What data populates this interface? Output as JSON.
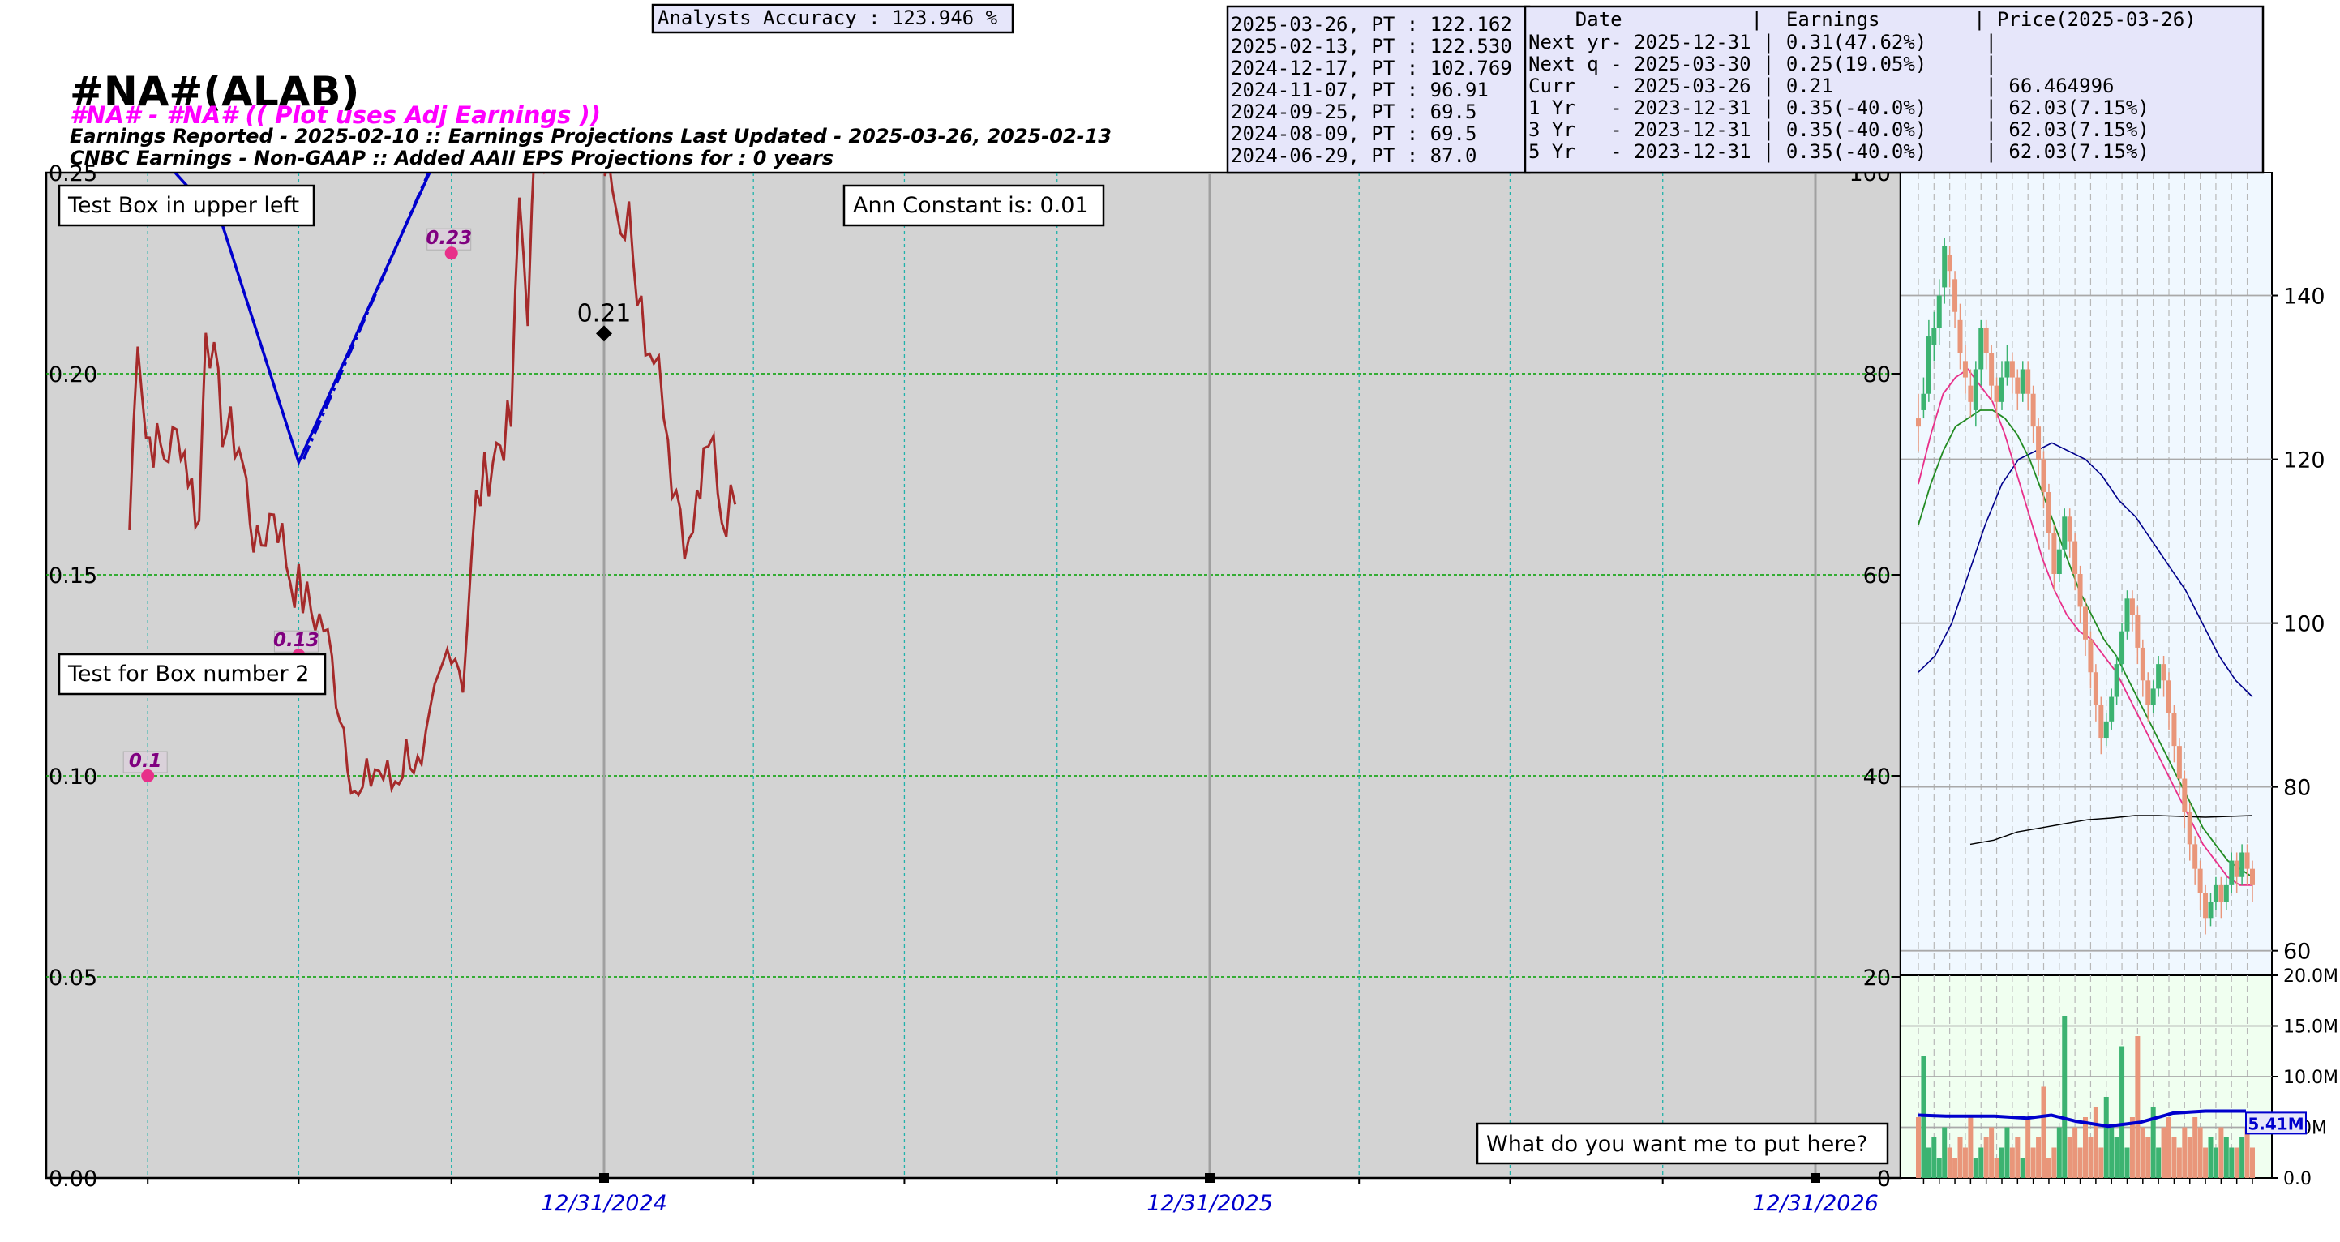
{
  "header": {
    "title": "#NA#(ALAB)",
    "subtitle": "#NA# - #NA# (( Plot uses Adj Earnings ))",
    "line1": "Earnings Reported - 2025-02-10 :: Earnings Projections Last Updated - 2025-03-26, 2025-02-13",
    "line2": "CNBC Earnings - Non-GAAP :: Added AAII EPS Projections for : 0 years",
    "accuracy": "Analysts Accuracy : 123.946 %"
  },
  "price_targets": [
    "2025-03-26, PT : 122.162",
    "2025-02-13, PT : 122.530",
    "2024-12-17, PT : 102.769",
    "2024-11-07, PT : 96.91",
    "2024-09-25, PT : 69.5",
    "2024-08-09, PT : 69.5",
    "2024-06-29, PT : 87.0"
  ],
  "earnings_table": {
    "header": "    Date           |  Earnings        | Price(2025-03-26)",
    "rows": [
      "Next yr- 2025-12-31 | 0.31(47.62%)     |",
      "Next q - 2025-03-30 | 0.25(19.05%)     |",
      "Curr   - 2025-03-26 | 0.21             | 66.464996",
      "1 Yr   - 2023-12-31 | 0.35(-40.0%)     | 62.03(7.15%)",
      "3 Yr   - 2023-12-31 | 0.35(-40.0%)     | 62.03(7.15%)",
      "5 Yr   - 2023-12-31 | 0.35(-40.0%)     | 62.03(7.15%)"
    ]
  },
  "boxes": {
    "upper_left": "Test Box in upper left",
    "box2": "Test for Box number 2",
    "constant": "Ann Constant is: 0.01",
    "bottom_right": "What do you want me to put here?"
  },
  "colors": {
    "plot_bg": "#d3d3d3",
    "price_line": "#a52a2a",
    "earnings_line": "#0000cd",
    "marker": "#e8308a",
    "label_purple": "#800080",
    "subtitle": "#ff00ff",
    "date_label": "#0000cd",
    "grid_green": "#00a000",
    "grid_cyan": "#20b2aa",
    "table_bg": "#e6e6fa",
    "candle_up": "#3cb371",
    "candle_down": "#e9967a",
    "right_bg": "#f0f8ff",
    "volume_bg": "#f0fff0"
  },
  "chart_data": [
    {
      "type": "line",
      "y_left_ticks": [
        "0.00",
        "0.05",
        "0.10",
        "0.15",
        "0.20",
        "0.25"
      ],
      "y_right_ticks": [
        "0",
        "20",
        "40",
        "60",
        "80",
        "100"
      ],
      "ylim_left": [
        0,
        0.25
      ],
      "ylim_right": [
        0,
        100
      ],
      "x_ticks": [
        "12/31/2024",
        "12/31/2025",
        "12/31/2026"
      ],
      "earnings_points": [
        {
          "date": "2024-03-31",
          "value": 0.1,
          "label": "0.1"
        },
        {
          "date": "2024-06-30",
          "value": 0.13,
          "label": "0.13"
        },
        {
          "date": "2024-09-30",
          "value": 0.23,
          "label": "0.23"
        }
      ],
      "current_point": {
        "date": "2024-12-31",
        "value": 0.21,
        "label": "0.21"
      },
      "earnings_line": [
        {
          "date": "2024-01-20",
          "value": 0.29
        },
        {
          "date": "2024-05-15",
          "value": 0.237
        },
        {
          "date": "2024-06-30",
          "value": 0.178
        },
        {
          "date": "2024-09-30",
          "value": 0.262
        }
      ],
      "earnings_projection_line": [
        {
          "date": "2024-06-30",
          "value": 0.178
        },
        {
          "date": "2024-09-30",
          "value": 0.265
        }
      ],
      "price_series": [
        {
          "date": "2024-03-20",
          "value": 64.5
        },
        {
          "date": "2024-03-25",
          "value": 85
        },
        {
          "date": "2024-03-30",
          "value": 74
        },
        {
          "date": "2024-04-10",
          "value": 72
        },
        {
          "date": "2024-04-20",
          "value": 74
        },
        {
          "date": "2024-05-01",
          "value": 65
        },
        {
          "date": "2024-05-05",
          "value": 86
        },
        {
          "date": "2024-05-15",
          "value": 75
        },
        {
          "date": "2024-05-25",
          "value": 73
        },
        {
          "date": "2024-06-05",
          "value": 62
        },
        {
          "date": "2024-06-15",
          "value": 67
        },
        {
          "date": "2024-06-25",
          "value": 60
        },
        {
          "date": "2024-07-05",
          "value": 57
        },
        {
          "date": "2024-07-15",
          "value": 55
        },
        {
          "date": "2024-07-25",
          "value": 47
        },
        {
          "date": "2024-08-05",
          "value": 37
        },
        {
          "date": "2024-08-15",
          "value": 41
        },
        {
          "date": "2024-08-25",
          "value": 39
        },
        {
          "date": "2024-09-05",
          "value": 43
        },
        {
          "date": "2024-09-12",
          "value": 39
        },
        {
          "date": "2024-09-20",
          "value": 47
        },
        {
          "date": "2024-09-30",
          "value": 54
        },
        {
          "date": "2024-10-07",
          "value": 50
        },
        {
          "date": "2024-10-15",
          "value": 67
        },
        {
          "date": "2024-10-25",
          "value": 72
        },
        {
          "date": "2024-11-05",
          "value": 75
        },
        {
          "date": "2024-11-10",
          "value": 97
        },
        {
          "date": "2024-11-15",
          "value": 87
        },
        {
          "date": "2024-11-20",
          "value": 103
        },
        {
          "date": "2024-12-25",
          "value": 103
        },
        {
          "date": "2025-01-05",
          "value": 101
        },
        {
          "date": "2025-01-10",
          "value": 94
        },
        {
          "date": "2025-01-15",
          "value": 98
        },
        {
          "date": "2025-01-20",
          "value": 88
        },
        {
          "date": "2025-01-25",
          "value": 84
        },
        {
          "date": "2025-01-30",
          "value": 84
        },
        {
          "date": "2025-02-05",
          "value": 78
        },
        {
          "date": "2025-02-10",
          "value": 70
        },
        {
          "date": "2025-02-15",
          "value": 67
        },
        {
          "date": "2025-02-20",
          "value": 62
        },
        {
          "date": "2025-02-25",
          "value": 67
        },
        {
          "date": "2025-03-01",
          "value": 70
        },
        {
          "date": "2025-03-07",
          "value": 73
        },
        {
          "date": "2025-03-12",
          "value": 66
        },
        {
          "date": "2025-03-20",
          "value": 67
        }
      ]
    },
    {
      "type": "candlestick",
      "ylim": [
        57,
        155
      ],
      "y_ticks": [
        "60",
        "80",
        "100",
        "120",
        "140"
      ],
      "candles": [
        [
          125,
          124,
          128,
          121
        ],
        [
          126,
          128,
          130,
          125
        ],
        [
          128,
          135,
          137,
          127
        ],
        [
          134,
          136,
          138,
          132
        ],
        [
          136,
          140,
          142,
          134
        ],
        [
          141,
          146,
          147,
          139
        ],
        [
          145,
          143,
          146,
          141
        ],
        [
          142,
          138,
          143,
          136
        ],
        [
          137,
          133,
          139,
          131
        ],
        [
          132,
          130,
          134,
          128
        ],
        [
          129,
          127,
          131,
          125
        ],
        [
          126,
          131,
          132,
          124
        ],
        [
          131,
          136,
          137,
          129
        ],
        [
          136,
          133,
          137,
          131
        ],
        [
          133,
          129,
          134,
          127
        ],
        [
          129,
          127,
          130,
          125
        ],
        [
          127,
          130,
          132,
          126
        ],
        [
          130,
          132,
          134,
          129
        ],
        [
          132,
          130,
          133,
          128
        ],
        [
          130,
          128,
          131,
          126
        ],
        [
          128,
          131,
          132,
          127
        ],
        [
          131,
          128,
          132,
          126
        ],
        [
          128,
          124,
          129,
          122
        ],
        [
          124,
          120,
          125,
          118
        ],
        [
          120,
          116,
          121,
          114
        ],
        [
          116,
          111,
          117,
          109
        ],
        [
          111,
          106,
          112,
          104
        ],
        [
          106,
          109,
          110,
          105
        ],
        [
          109,
          113,
          114,
          108
        ],
        [
          113,
          110,
          114,
          108
        ],
        [
          110,
          106,
          111,
          104
        ],
        [
          106,
          102,
          107,
          100
        ],
        [
          102,
          98,
          103,
          96
        ],
        [
          98,
          94,
          99,
          92
        ],
        [
          94,
          90,
          95,
          88
        ],
        [
          90,
          86,
          91,
          84
        ],
        [
          86,
          88,
          89,
          85
        ],
        [
          88,
          91,
          92,
          87
        ],
        [
          91,
          95,
          96,
          90
        ],
        [
          95,
          99,
          100,
          94
        ],
        [
          99,
          103,
          104,
          98
        ],
        [
          103,
          101,
          104,
          99
        ],
        [
          101,
          97,
          102,
          95
        ],
        [
          97,
          93,
          98,
          91
        ],
        [
          93,
          90,
          94,
          88
        ],
        [
          90,
          92,
          93,
          89
        ],
        [
          92,
          95,
          96,
          91
        ],
        [
          95,
          93,
          96,
          91
        ],
        [
          93,
          89,
          94,
          87
        ],
        [
          89,
          85,
          90,
          83
        ],
        [
          85,
          81,
          86,
          79
        ],
        [
          81,
          77,
          82,
          75
        ],
        [
          77,
          73,
          78,
          71
        ],
        [
          73,
          70,
          74,
          68
        ],
        [
          70,
          67,
          71,
          65
        ],
        [
          67,
          64,
          68,
          62
        ],
        [
          64,
          66,
          67,
          63
        ],
        [
          66,
          68,
          69,
          65
        ],
        [
          68,
          66,
          69,
          64
        ],
        [
          66,
          68,
          69,
          65
        ],
        [
          68,
          71,
          72,
          67
        ],
        [
          71,
          69,
          72,
          67
        ],
        [
          69,
          72,
          73,
          68
        ],
        [
          72,
          70,
          73,
          68
        ],
        [
          70,
          68,
          71,
          66
        ]
      ],
      "ma_short": [
        117,
        123,
        128,
        130,
        131,
        129,
        127,
        123,
        118,
        113,
        108,
        104,
        101,
        99,
        98,
        96,
        94,
        91,
        88,
        85,
        82,
        79,
        76,
        73,
        71,
        69,
        68,
        68
      ],
      "ma_mid": [
        112,
        117,
        121,
        124,
        125,
        126,
        126,
        125,
        123,
        120,
        116,
        112,
        108,
        104,
        101,
        98,
        96,
        93,
        90,
        87,
        84,
        81,
        78,
        75,
        73,
        71,
        70,
        69
      ],
      "ma_long": [
        94,
        96,
        100,
        106,
        112,
        117,
        120,
        121,
        122,
        121,
        120,
        118,
        115,
        113,
        110,
        107,
        104,
        100,
        96,
        93,
        91
      ],
      "ma_200": [
        73,
        73.5,
        74.5,
        75,
        75.5,
        76,
        76.2,
        76.5,
        76.5,
        76.4,
        76.3,
        76.4,
        76.5
      ]
    },
    {
      "type": "bar",
      "ylim": [
        0,
        20
      ],
      "y_ticks": [
        "0.0",
        "5.0M",
        "10.0M",
        "15.0M",
        "20.0M"
      ],
      "volume_avg_label": "5.41M",
      "volume_avg": 5.41,
      "volumes": [
        6,
        12,
        3,
        4,
        2,
        5,
        3,
        2,
        4,
        3,
        6,
        2,
        3,
        4,
        5,
        2,
        3,
        5,
        3,
        4,
        2,
        6,
        3,
        4,
        9,
        2,
        3,
        5,
        16,
        4,
        5,
        3,
        6,
        4,
        7,
        3,
        8,
        5,
        4,
        13,
        3,
        6,
        14,
        5,
        4,
        7,
        3,
        5,
        6,
        4,
        3,
        5,
        4,
        6,
        5,
        3,
        4,
        3,
        5,
        4,
        3,
        3,
        4,
        5,
        3
      ]
    }
  ]
}
